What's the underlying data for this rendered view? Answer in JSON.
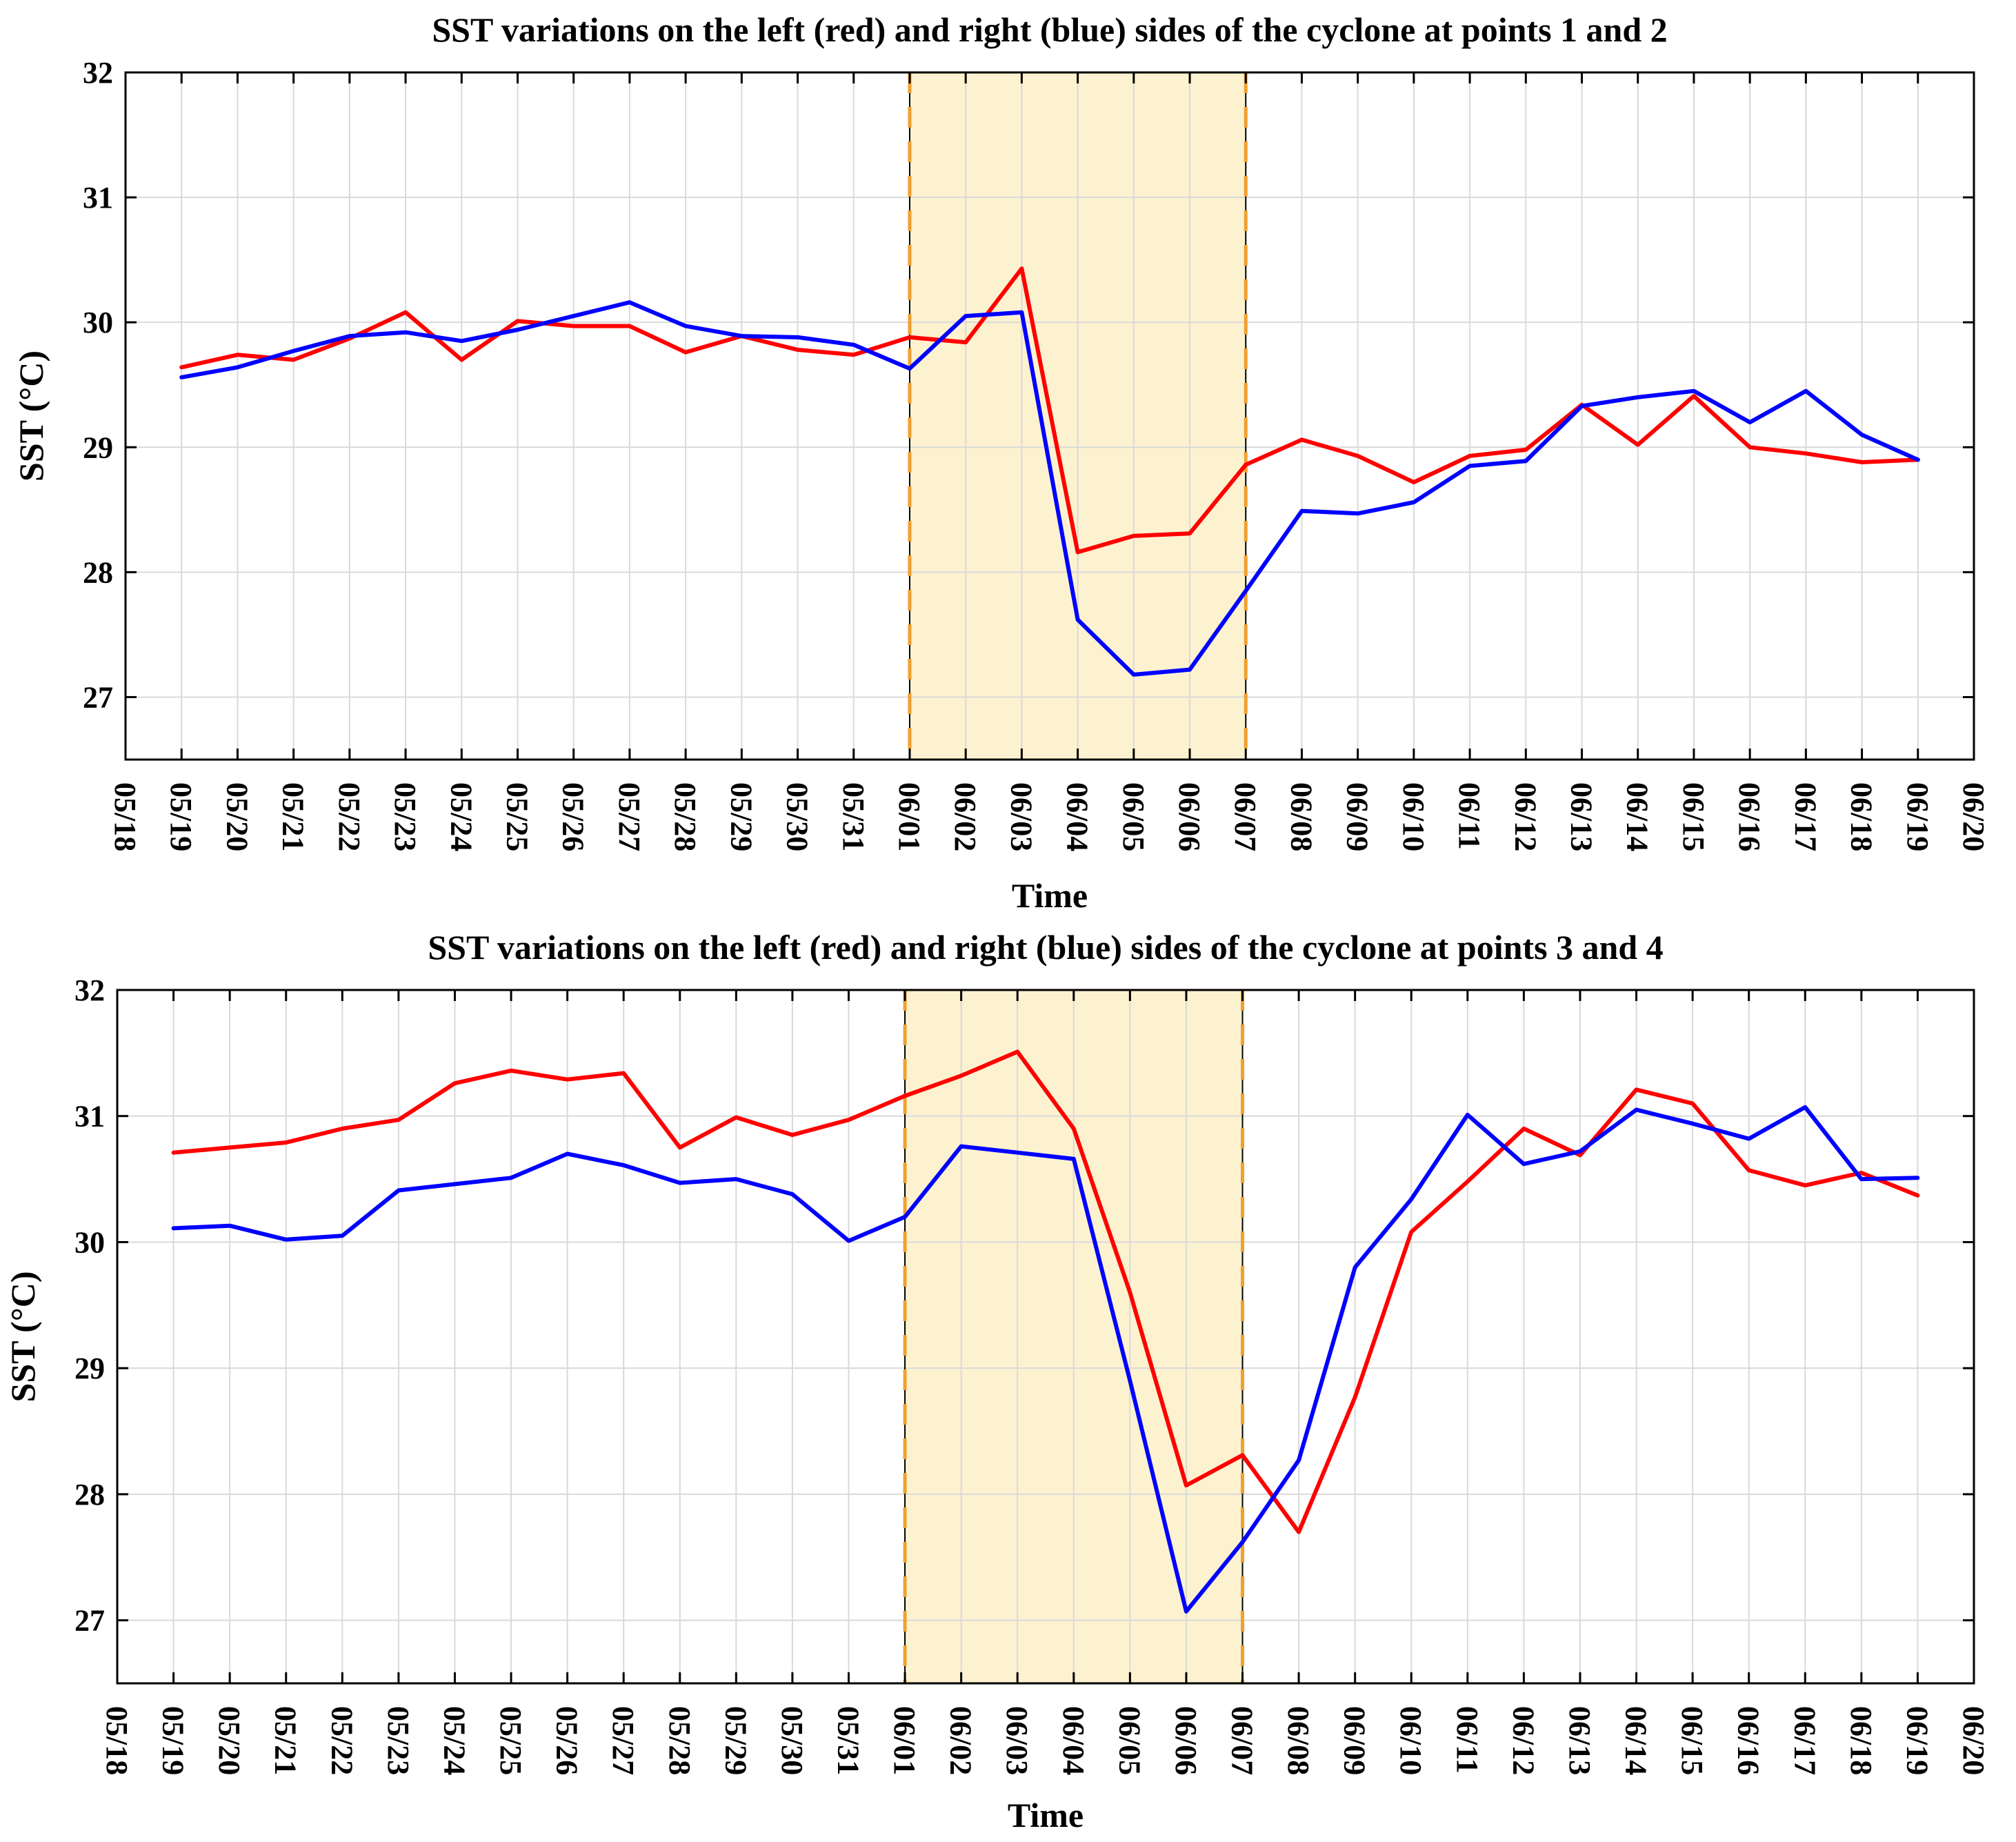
{
  "chart_data": [
    {
      "type": "line",
      "title": "SST variations on the left (red) and right (blue) sides of the cyclone at points 1 and 2",
      "xlabel": "Time",
      "ylabel": "SST (°C)",
      "ylim": [
        26.5,
        32
      ],
      "yticks": [
        27,
        28,
        29,
        30,
        31,
        32
      ],
      "grid": true,
      "categories": [
        "05/18",
        "05/19",
        "05/20",
        "05/21",
        "05/22",
        "05/23",
        "05/24",
        "05/25",
        "05/26",
        "05/27",
        "05/28",
        "05/29",
        "05/30",
        "05/31",
        "06/01",
        "06/02",
        "06/03",
        "06/04",
        "06/05",
        "06/06",
        "06/07",
        "06/08",
        "06/09",
        "06/10",
        "06/11",
        "06/12",
        "06/13",
        "06/14",
        "06/15",
        "06/16",
        "06/17",
        "06/18",
        "06/19",
        "06/20"
      ],
      "shaded_period": {
        "start": "06/01",
        "end": "06/07",
        "fill_color": "#fdf2d0",
        "border_color": "#f0a030"
      },
      "series": [
        {
          "name": "left (red)",
          "color": "#ff0000",
          "x": [
            "05/19",
            "05/20",
            "05/21",
            "05/22",
            "05/23",
            "05/24",
            "05/25",
            "05/26",
            "05/27",
            "05/28",
            "05/29",
            "05/30",
            "05/31",
            "06/01",
            "06/02",
            "06/03",
            "06/04",
            "06/05",
            "06/06",
            "06/07",
            "06/08",
            "06/09",
            "06/10",
            "06/11",
            "06/12",
            "06/13",
            "06/14",
            "06/15",
            "06/16",
            "06/17",
            "06/18",
            "06/19"
          ],
          "values": [
            29.64,
            29.74,
            29.7,
            29.87,
            30.08,
            29.7,
            30.01,
            29.97,
            29.97,
            29.76,
            29.89,
            29.78,
            29.74,
            29.88,
            29.84,
            30.43,
            28.16,
            28.29,
            28.31,
            28.86,
            29.06,
            28.93,
            28.72,
            28.93,
            28.98,
            29.34,
            29.02,
            29.41,
            29.0,
            28.95,
            28.88,
            28.9
          ]
        },
        {
          "name": "right (blue)",
          "color": "#0000ff",
          "x": [
            "05/19",
            "05/20",
            "05/21",
            "05/22",
            "05/23",
            "05/24",
            "05/25",
            "05/26",
            "05/27",
            "05/28",
            "05/29",
            "05/30",
            "05/31",
            "06/01",
            "06/02",
            "06/03",
            "06/04",
            "06/05",
            "06/06",
            "06/07",
            "06/08",
            "06/09",
            "06/10",
            "06/11",
            "06/12",
            "06/13",
            "06/14",
            "06/15",
            "06/16",
            "06/17",
            "06/18",
            "06/19"
          ],
          "values": [
            29.56,
            29.64,
            29.77,
            29.89,
            29.92,
            29.85,
            29.94,
            30.05,
            30.16,
            29.97,
            29.89,
            29.88,
            29.82,
            29.63,
            30.05,
            30.08,
            27.62,
            27.18,
            27.22,
            27.85,
            28.49,
            28.47,
            28.56,
            28.85,
            28.89,
            29.33,
            29.4,
            29.45,
            29.2,
            29.45,
            29.1,
            28.9
          ]
        }
      ]
    },
    {
      "type": "line",
      "title": "SST variations on the left (red) and right (blue) sides of the cyclone at points 3 and 4",
      "xlabel": "Time",
      "ylabel": "SST (°C)",
      "ylim": [
        26.5,
        32
      ],
      "yticks": [
        27,
        28,
        29,
        30,
        31,
        32
      ],
      "grid": true,
      "categories": [
        "05/18",
        "05/19",
        "05/20",
        "05/21",
        "05/22",
        "05/23",
        "05/24",
        "05/25",
        "05/26",
        "05/27",
        "05/28",
        "05/29",
        "05/30",
        "05/31",
        "06/01",
        "06/02",
        "06/03",
        "06/04",
        "06/05",
        "06/06",
        "06/07",
        "06/08",
        "06/09",
        "06/10",
        "06/11",
        "06/12",
        "06/13",
        "06/14",
        "06/15",
        "06/16",
        "06/17",
        "06/18",
        "06/19",
        "06/20"
      ],
      "shaded_period": {
        "start": "06/01",
        "end": "06/07",
        "fill_color": "#fdf2d0",
        "border_color": "#f0a030"
      },
      "series": [
        {
          "name": "left (red)",
          "color": "#ff0000",
          "x": [
            "05/19",
            "05/20",
            "05/21",
            "05/22",
            "05/23",
            "05/24",
            "05/25",
            "05/26",
            "05/27",
            "05/28",
            "05/29",
            "05/30",
            "05/31",
            "06/01",
            "06/02",
            "06/03",
            "06/04",
            "06/05",
            "06/06",
            "06/07",
            "06/08",
            "06/09",
            "06/10",
            "06/11",
            "06/12",
            "06/13",
            "06/14",
            "06/15",
            "06/16",
            "06/17",
            "06/18",
            "06/19"
          ],
          "values": [
            30.71,
            30.75,
            30.79,
            30.9,
            30.97,
            31.26,
            31.36,
            31.29,
            31.34,
            30.75,
            30.99,
            30.85,
            30.97,
            31.16,
            31.32,
            31.51,
            30.9,
            29.6,
            28.07,
            28.31,
            27.7,
            28.77,
            30.08,
            30.48,
            30.9,
            30.69,
            31.21,
            31.1,
            30.57,
            30.45,
            30.55,
            30.37
          ]
        },
        {
          "name": "right (blue)",
          "color": "#0000ff",
          "x": [
            "05/19",
            "05/20",
            "05/21",
            "05/22",
            "05/23",
            "05/24",
            "05/25",
            "05/26",
            "05/27",
            "05/28",
            "05/29",
            "05/30",
            "05/31",
            "06/01",
            "06/02",
            "06/03",
            "06/04",
            "06/05",
            "06/06",
            "06/07",
            "06/08",
            "06/09",
            "06/10",
            "06/11",
            "06/12",
            "06/13",
            "06/14",
            "06/15",
            "06/16",
            "06/17",
            "06/18",
            "06/19"
          ],
          "values": [
            30.11,
            30.13,
            30.02,
            30.05,
            30.41,
            30.46,
            30.51,
            30.7,
            30.61,
            30.47,
            30.5,
            30.38,
            30.01,
            30.2,
            30.76,
            30.71,
            30.66,
            28.9,
            27.07,
            27.62,
            28.27,
            29.8,
            30.34,
            31.01,
            30.62,
            30.72,
            31.05,
            30.94,
            30.82,
            31.07,
            30.5,
            30.51
          ]
        }
      ]
    }
  ]
}
